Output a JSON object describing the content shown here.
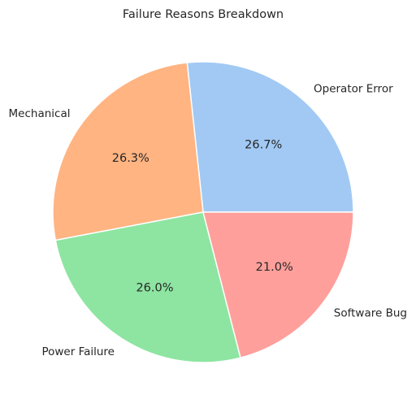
{
  "chart_data": {
    "type": "pie",
    "title": "Failure Reasons Breakdown",
    "categories": [
      "Operator Error",
      "Mechanical",
      "Power Failure",
      "Software Bug"
    ],
    "values": [
      26.7,
      26.3,
      26.0,
      21.0
    ],
    "percent_labels": [
      "26.7%",
      "26.3%",
      "26.0%",
      "21.0%"
    ],
    "colors": [
      "#a1c9f4",
      "#ffb482",
      "#8de5a1",
      "#ff9f9b"
    ],
    "start_angle_deg": 0,
    "direction": "counterclockwise",
    "wedge_edge_color": "#ffffff"
  }
}
